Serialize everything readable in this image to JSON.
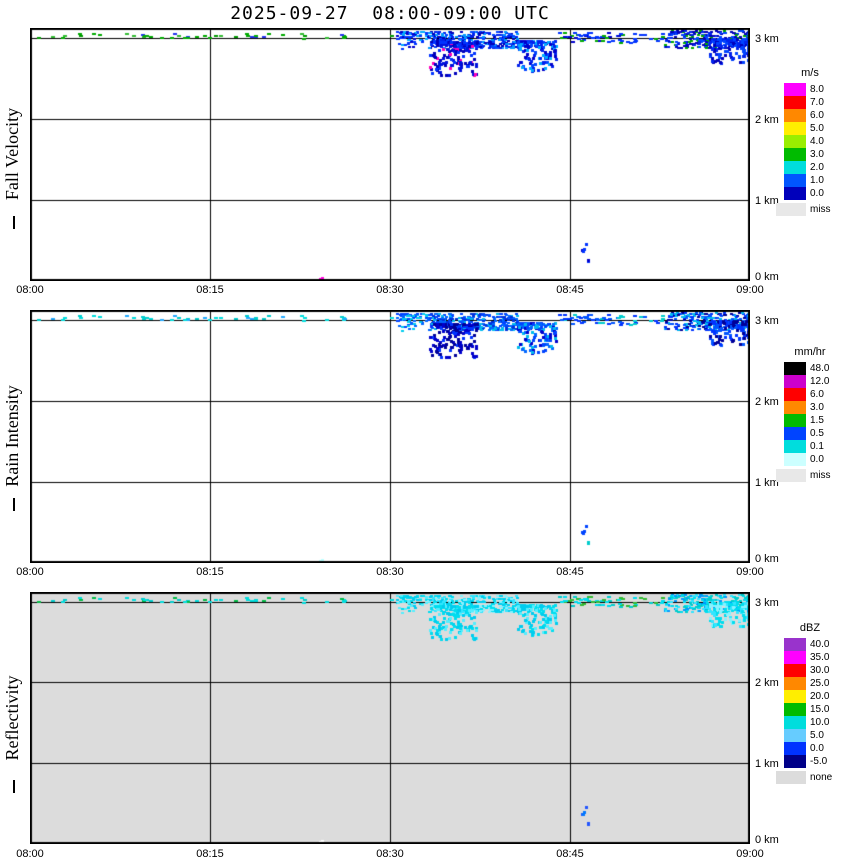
{
  "title": "2025-09-27  08:00-09:00 UTC",
  "x_ticks": [
    "08:00",
    "08:15",
    "08:30",
    "08:45",
    "09:00"
  ],
  "height_labels": [
    {
      "text": "3 km",
      "km": 3
    },
    {
      "text": "2 km",
      "km": 2
    },
    {
      "text": "1 km",
      "km": 1
    },
    {
      "text": "0 km",
      "km": 0
    }
  ],
  "panels": [
    {
      "ylabel": "Fall Velocity",
      "unit": "m/s",
      "bg": "#ffffff",
      "scale": [
        {
          "label": "8.0",
          "color": "#ff00ff"
        },
        {
          "label": "7.0",
          "color": "#ff0000"
        },
        {
          "label": "6.0",
          "color": "#ff8800"
        },
        {
          "label": "5.0",
          "color": "#ffee00"
        },
        {
          "label": "4.0",
          "color": "#99ee00"
        },
        {
          "label": "3.0",
          "color": "#00bb00"
        },
        {
          "label": "2.0",
          "color": "#00dddd"
        },
        {
          "label": "1.0",
          "color": "#0055ff"
        },
        {
          "label": "0.0",
          "color": "#0000bb"
        }
      ],
      "missing": {
        "label": "miss",
        "color": "#e8e8e8"
      }
    },
    {
      "ylabel": "Rain Intensity",
      "unit": "mm/hr",
      "bg": "#ffffff",
      "scale": [
        {
          "label": "48.0",
          "color": "#000000"
        },
        {
          "label": "12.0",
          "color": "#cc00cc"
        },
        {
          "label": "6.0",
          "color": "#ff0000"
        },
        {
          "label": "3.0",
          "color": "#ff8800"
        },
        {
          "label": "1.5",
          "color": "#00bb00"
        },
        {
          "label": "0.5",
          "color": "#0044ff"
        },
        {
          "label": "0.1",
          "color": "#00dddd"
        },
        {
          "label": "0.0",
          "color": "#ccffff"
        }
      ],
      "missing": {
        "label": "miss",
        "color": "#e8e8e8"
      }
    },
    {
      "ylabel": "Reflectivity",
      "unit": "dBZ",
      "bg": "#dcdcdc",
      "scale": [
        {
          "label": "40.0",
          "color": "#9933cc"
        },
        {
          "label": "35.0",
          "color": "#ff00ff"
        },
        {
          "label": "30.0",
          "color": "#ff0000"
        },
        {
          "label": "25.0",
          "color": "#ff8800"
        },
        {
          "label": "20.0",
          "color": "#ffee00"
        },
        {
          "label": "15.0",
          "color": "#00bb00"
        },
        {
          "label": "10.0",
          "color": "#00dddd"
        },
        {
          "label": "5.0",
          "color": "#66ccff"
        },
        {
          "label": "0.0",
          "color": "#0033ff"
        },
        {
          "label": "-5.0",
          "color": "#000088"
        }
      ],
      "missing": {
        "label": "none",
        "color": "#dcdcdc"
      }
    }
  ],
  "chart_data": {
    "type": "heatmap",
    "title": "2025-09-27  08:00-09:00 UTC",
    "x_axis": {
      "ticks": [
        "08:00",
        "08:15",
        "08:30",
        "08:45",
        "09:00"
      ],
      "range_minutes_after_0800": [
        0,
        60
      ],
      "gridlines_minutes": [
        15,
        30,
        45
      ]
    },
    "y_axis": {
      "ticks": [
        "0 km",
        "1 km",
        "2 km",
        "3 km"
      ],
      "range_km": [
        0,
        3.12
      ],
      "gridlines_km": [
        1,
        2,
        3
      ]
    },
    "panels": [
      "Fall Velocity (m/s)",
      "Rain Intensity (mm/hr)",
      "Reflectivity (dBZ)"
    ],
    "clusters": [
      {
        "seed": 11,
        "t": [
          0.3,
          30.5
        ],
        "h": [
          3.0,
          3.06
        ],
        "n": 46,
        "size": [
          4,
          2
        ],
        "bias": false,
        "c": [
          [
            "#009900",
            "#00aa00",
            "#00aa00",
            "#33bb33",
            "#2233ee"
          ],
          [
            "#00cccc",
            "#00dddd",
            "#00dddd",
            "#22aaff"
          ],
          [
            "#00bb44",
            "#00cccc",
            "#00dddd",
            "#00dddd"
          ]
        ]
      },
      {
        "seed": 22,
        "t": [
          30.5,
          33.2
        ],
        "h": [
          2.85,
          3.08
        ],
        "n": 70,
        "size": [
          3,
          2
        ],
        "bias": true,
        "c": [
          [
            "#0000cc",
            "#0033ff",
            "#0033ff",
            "#00aaff"
          ],
          [
            "#0044ff",
            "#00ccee",
            "#0066ff"
          ],
          [
            "#00ddee",
            "#55eeff",
            "#00ccee"
          ]
        ]
      },
      {
        "seed": 33,
        "t": [
          33,
          40.5
        ],
        "h": [
          2.88,
          3.09
        ],
        "n": 280,
        "size": [
          3,
          2
        ],
        "bias": false,
        "c": [
          [
            "#0000bb",
            "#0022ee",
            "#0044ff",
            "#0099ff"
          ],
          [
            "#0044ff",
            "#0066ff",
            "#00bbee",
            "#0033dd"
          ],
          [
            "#00ddee",
            "#33e5ff",
            "#88f2ff",
            "#00ccee"
          ]
        ]
      },
      {
        "seed": 44,
        "t": [
          33.2,
          37.2
        ],
        "h": [
          2.55,
          2.96
        ],
        "n": 170,
        "size": [
          3,
          3
        ],
        "bias": true,
        "c": [
          [
            "#0000bb",
            "#0011dd",
            "#0033ff",
            "#0000bb",
            "#0011dd",
            "#0033ff",
            "#0000bb",
            "#0011dd",
            "#0033ff",
            "#0000bb",
            "#0011dd",
            "#0033ff",
            "#0000bb",
            "#ff00bb"
          ],
          [
            "#000099",
            "#0000cc",
            "#0033ff",
            "#000099",
            "#0000cc"
          ],
          [
            "#00ccee",
            "#00ddee",
            "#55eeff"
          ]
        ]
      },
      {
        "seed": 55,
        "t": [
          40.5,
          43.8
        ],
        "h": [
          2.6,
          2.97
        ],
        "n": 130,
        "size": [
          3,
          3
        ],
        "bias": true,
        "c": [
          [
            "#0022ee",
            "#0044ff",
            "#00aaff",
            "#0000cc"
          ],
          [
            "#0044ff",
            "#00bbee",
            "#0066ff",
            "#0000cc"
          ],
          [
            "#00ddee",
            "#55eeff",
            "#00ccee"
          ]
        ]
      },
      {
        "seed": 66,
        "t": [
          44,
          52.8
        ],
        "h": [
          2.95,
          3.07
        ],
        "n": 60,
        "size": [
          4,
          2
        ],
        "bias": false,
        "c": [
          [
            "#0033ff",
            "#0000cc",
            "#00aa00",
            "#0033ff"
          ],
          [
            "#0055ff",
            "#00cccc",
            "#0033ff"
          ],
          [
            "#00ddee",
            "#00cccc",
            "#33bb33"
          ]
        ]
      },
      {
        "seed": 77,
        "t": [
          52.8,
          60
        ],
        "h": [
          2.88,
          3.1
        ],
        "n": 260,
        "size": [
          3,
          2
        ],
        "bias": false,
        "c": [
          [
            "#0000bb",
            "#0022ee",
            "#0044ff",
            "#0000bb",
            "#00aa00"
          ],
          [
            "#0033ff",
            "#0055ff",
            "#000099",
            "#00bbee"
          ],
          [
            "#00ddee",
            "#33e5ff",
            "#00cccc",
            "#0099ff"
          ]
        ]
      },
      {
        "seed": 88,
        "t": [
          56.5,
          60
        ],
        "h": [
          2.7,
          3.0
        ],
        "n": 130,
        "size": [
          3,
          3
        ],
        "bias": true,
        "c": [
          [
            "#0000bb",
            "#0022ee",
            "#0044ff"
          ],
          [
            "#0033ff",
            "#000099",
            "#0055ff"
          ],
          [
            "#00ddee",
            "#33e5ff",
            "#88f2ff"
          ]
        ]
      },
      {
        "seed": 99,
        "t": [
          24.0,
          24.4
        ],
        "h": [
          0.02,
          0.12
        ],
        "n": 2,
        "size": [
          3,
          3
        ],
        "bias": false,
        "c": [
          [
            "#ff00dd"
          ],
          [
            "#bbffff"
          ],
          [
            "#ffffff"
          ]
        ]
      },
      {
        "seed": 111,
        "t": [
          45.9,
          46.4
        ],
        "h": [
          0.18,
          0.58
        ],
        "n": 6,
        "size": [
          3,
          3
        ],
        "bias": false,
        "c": [
          [
            "#0033ff",
            "#0000cc"
          ],
          [
            "#00cccc",
            "#0044ff"
          ],
          [
            "#2255ff",
            "#0077ff"
          ]
        ]
      }
    ]
  }
}
